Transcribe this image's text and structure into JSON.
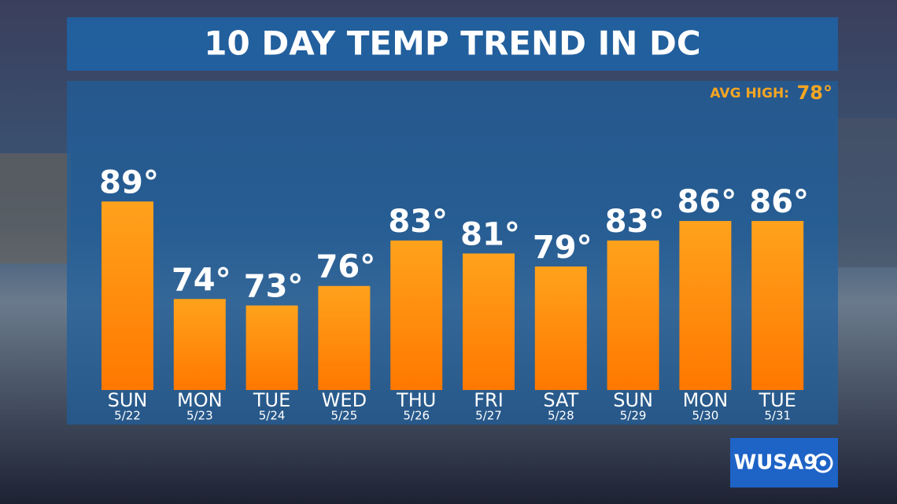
{
  "chart_data": {
    "type": "bar",
    "title": "10 DAY TEMP TREND IN DC",
    "annotation_label": "AVG HIGH:",
    "annotation_value": "78°",
    "categories": [
      "SUN",
      "MON",
      "TUE",
      "WED",
      "THU",
      "FRI",
      "SAT",
      "SUN",
      "MON",
      "TUE"
    ],
    "dates": [
      "5/22",
      "5/23",
      "5/24",
      "5/25",
      "5/26",
      "5/27",
      "5/28",
      "5/29",
      "5/30",
      "5/31"
    ],
    "values": [
      89,
      74,
      73,
      76,
      83,
      81,
      79,
      83,
      86,
      86
    ],
    "value_labels": [
      "89°",
      "74°",
      "73°",
      "76°",
      "83°",
      "81°",
      "79°",
      "83°",
      "86°",
      "86°"
    ],
    "color": "#ff8a0a",
    "ylim": [
      60,
      90
    ]
  },
  "logo": "WUSA9"
}
